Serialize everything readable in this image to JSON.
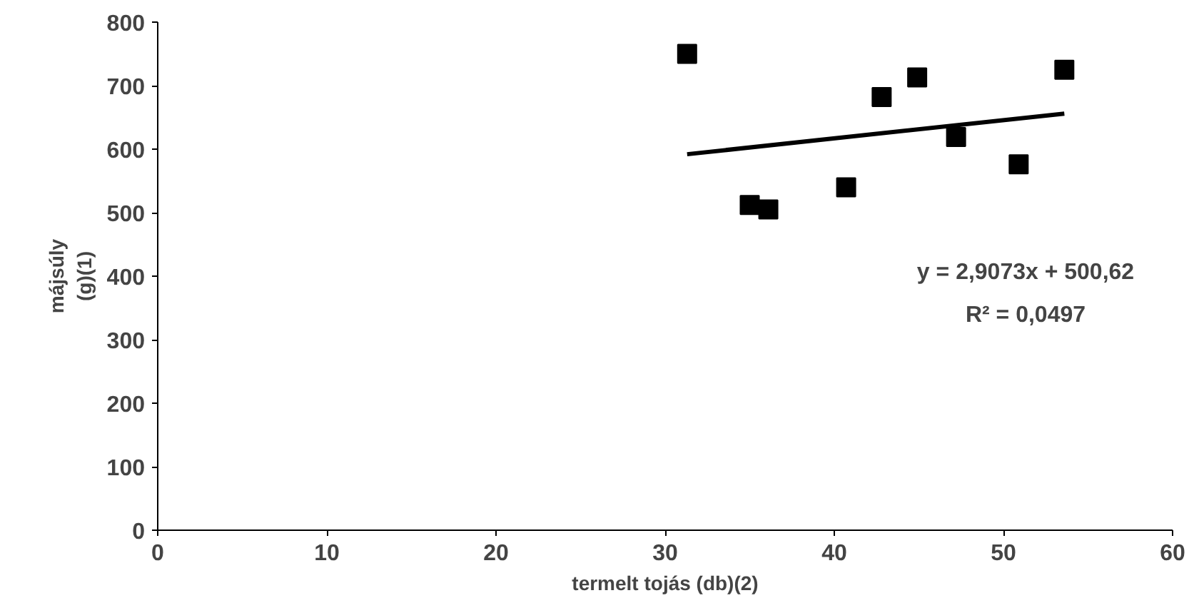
{
  "chart_data": {
    "type": "scatter",
    "xlabel": "termelt tojás (db)(2)",
    "ylabel": "májsúly\n(g)(1)",
    "xlim": [
      0,
      60
    ],
    "xticks": [
      0,
      10,
      20,
      30,
      40,
      50,
      60
    ],
    "ylim": [
      0,
      800
    ],
    "yticks": [
      0,
      100,
      200,
      300,
      400,
      500,
      600,
      700,
      800
    ],
    "grid": false,
    "marker": "square",
    "series": [
      {
        "color": "#000000",
        "x": [
          31.3,
          35.0,
          36.1,
          40.7,
          42.8,
          44.9,
          47.2,
          50.9,
          53.6
        ],
        "values": [
          750,
          512,
          505,
          540,
          682,
          713,
          619,
          576,
          725
        ]
      },
      {
        "type": "line",
        "color": "#000000",
        "x": [
          31.3,
          53.6
        ],
        "values": [
          592,
          656
        ],
        "line_style": "solid",
        "marker": "none"
      }
    ],
    "annotations": [
      "y = 2,9073x + 500,62",
      "R² = 0,0497"
    ]
  }
}
